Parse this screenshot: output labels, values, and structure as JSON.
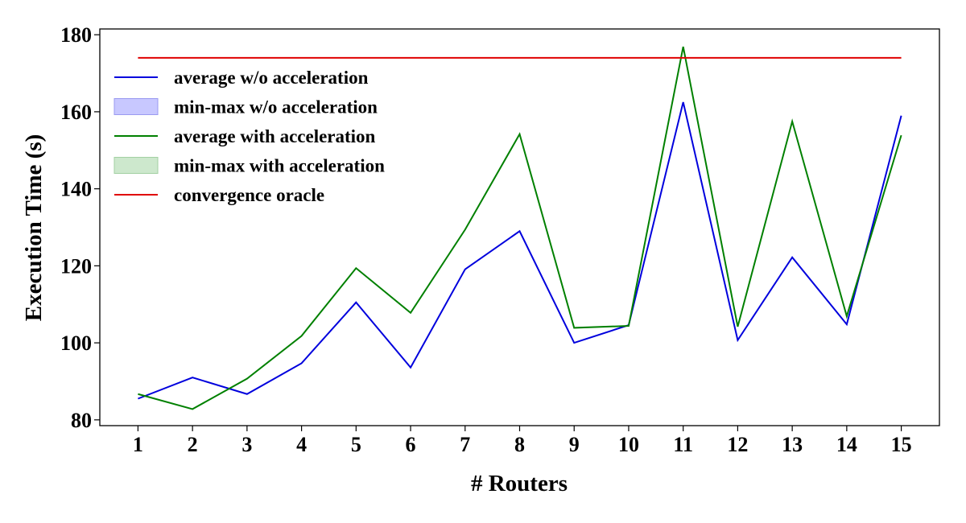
{
  "chart_data": {
    "type": "line",
    "xlabel": "# Routers",
    "ylabel": "Execution Time (s)",
    "x": [
      1,
      2,
      3,
      4,
      5,
      6,
      7,
      8,
      9,
      10,
      11,
      12,
      13,
      14,
      15
    ],
    "xlim": [
      0.3,
      15.7
    ],
    "ylim": [
      78.5,
      181.5
    ],
    "yticks": [
      80,
      100,
      120,
      140,
      160,
      180
    ],
    "grid": false,
    "legend_position": "top-left",
    "series": [
      {
        "name": "average w/o acceleration",
        "color": "#0000dd",
        "values": [
          85.5,
          91,
          86.7,
          94.7,
          110.5,
          93.6,
          119.1,
          129,
          100,
          104.6,
          162.5,
          100.7,
          122.2,
          104.8,
          159
        ]
      },
      {
        "name": "average with acceleration",
        "color": "#008000",
        "values": [
          86.7,
          82.8,
          90.7,
          101.8,
          119.4,
          107.8,
          129.4,
          154.2,
          103.9,
          104.4,
          176.9,
          104.2,
          157.5,
          106.9,
          153.9
        ]
      },
      {
        "name": "convergence oracle",
        "color": "#e00000",
        "values": [
          174,
          174,
          174,
          174,
          174,
          174,
          174,
          174,
          174,
          174,
          174,
          174,
          174,
          174,
          174
        ]
      }
    ],
    "legend": [
      {
        "label": "average w/o acceleration",
        "kind": "line",
        "color": "#0000dd"
      },
      {
        "label": "min-max w/o acceleration",
        "kind": "patch",
        "color": "#c8c8ff",
        "edge": "#9a9af0"
      },
      {
        "label": "average with acceleration",
        "kind": "line",
        "color": "#008000"
      },
      {
        "label": "min-max with acceleration",
        "kind": "patch",
        "color": "#cde8cd",
        "edge": "#a2d0a2"
      },
      {
        "label": "convergence oracle",
        "kind": "line",
        "color": "#e00000"
      }
    ]
  }
}
